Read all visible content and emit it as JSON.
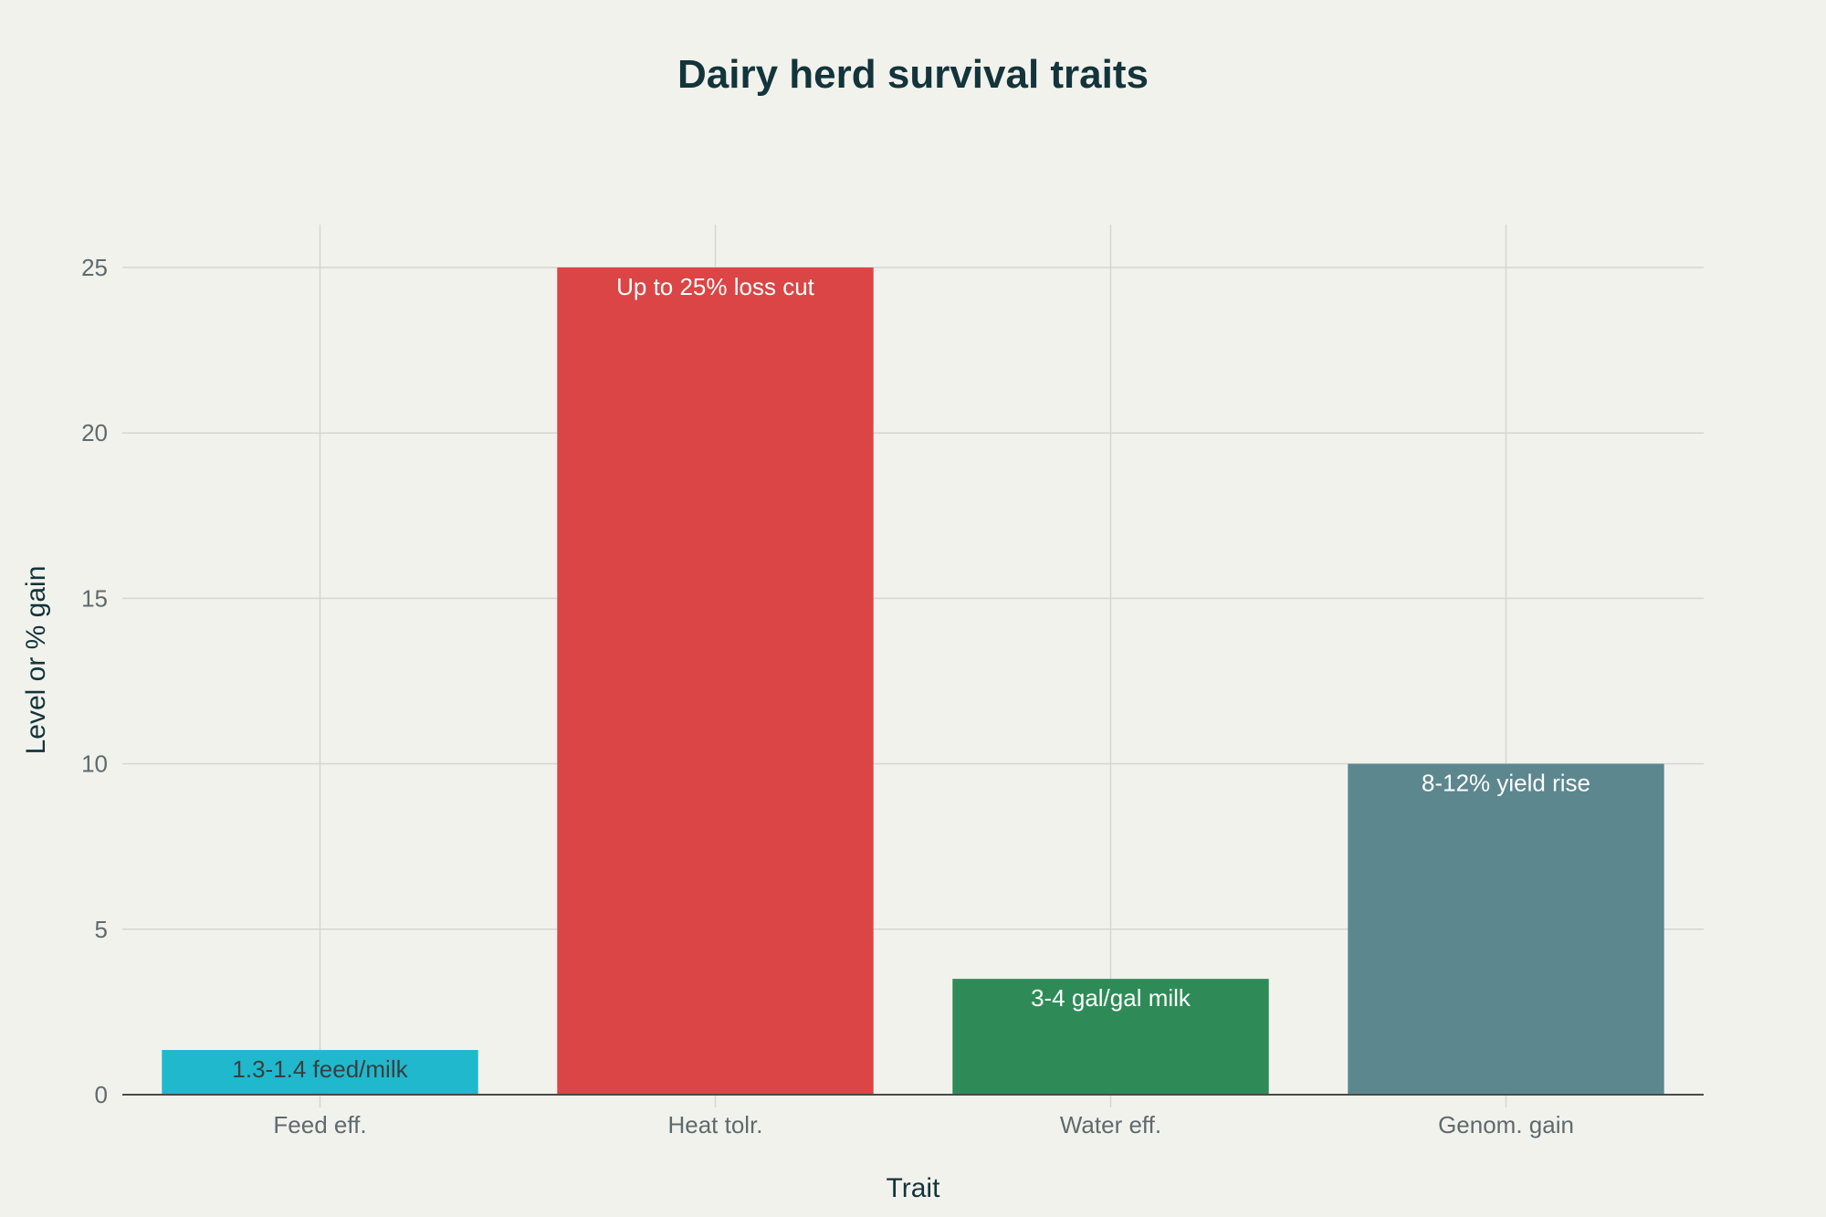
{
  "chart_data": {
    "type": "bar",
    "title": "Dairy herd survival traits",
    "xlabel": "Trait",
    "ylabel": "Level or % gain",
    "categories": [
      "Feed eff.",
      "Heat tolr.",
      "Water eff.",
      "Genom. gain"
    ],
    "values": [
      1.35,
      25,
      3.5,
      10
    ],
    "data_labels": [
      "1.3-1.4 feed/milk",
      "Up to 25% loss cut",
      "3-4 gal/gal milk",
      "8-12% yield rise"
    ],
    "colors": [
      "#1fb8cd",
      "#db4545",
      "#2e8b57",
      "#5d878f"
    ],
    "label_colors": [
      "#3d3d3d",
      "#ffffff",
      "#ffffff",
      "#ffffff"
    ],
    "ylim": [
      0,
      26.3
    ],
    "yticks": [
      0,
      5,
      10,
      15,
      20,
      25
    ],
    "grid": true,
    "legend": "none"
  }
}
